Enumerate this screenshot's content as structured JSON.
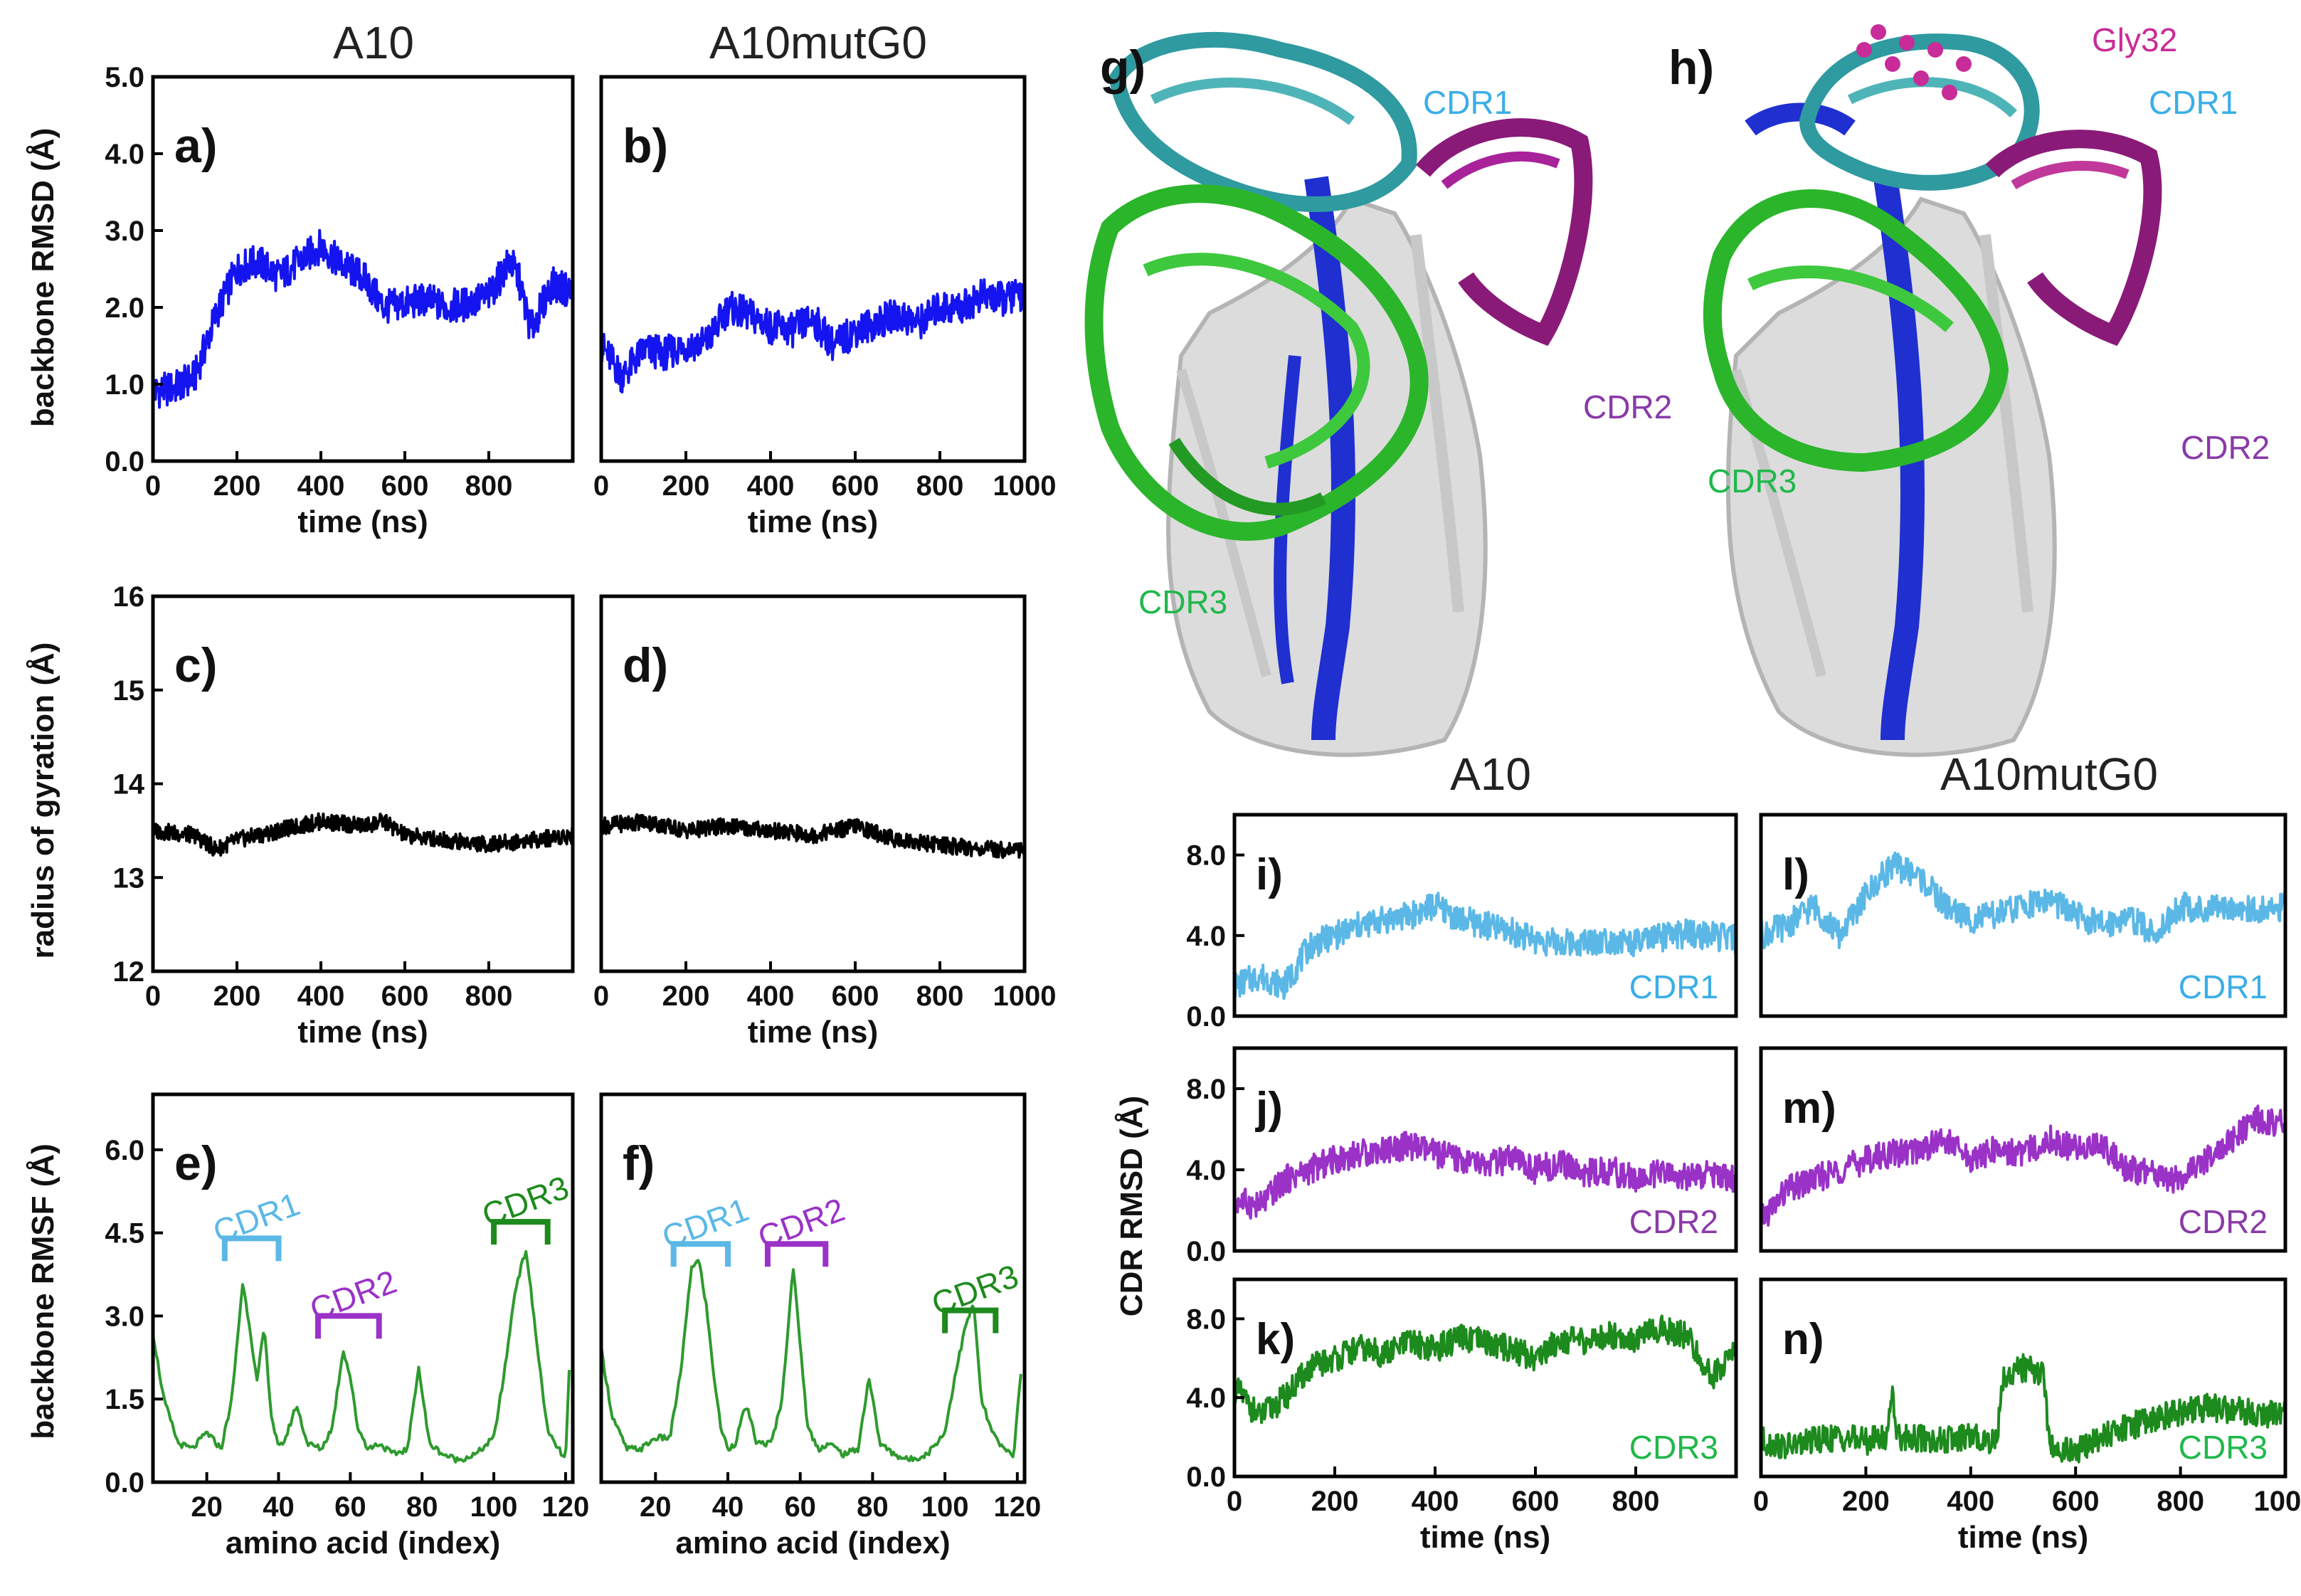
{
  "colors": {
    "rmsd": "#1414f0",
    "rg": "#000000",
    "rmsf": "#2e9a2e",
    "cdr1": "#5bb8e6",
    "cdr2": "#9a32c8",
    "cdr3": "#1d8a1d",
    "cdr1_text": "#3aaee8",
    "cdr2_text": "#8a3aa8",
    "cdr3_text": "#1fb84a",
    "gly32": "#c82c98"
  },
  "column_titles": [
    "A10",
    "A10mutG0",
    "A10",
    "A10mutG0"
  ],
  "structure_labels": {
    "g": {
      "panel": "g)",
      "cdr1": "CDR1",
      "cdr2": "CDR2",
      "cdr3": "CDR3"
    },
    "h": {
      "panel": "h)",
      "cdr1": "CDR1",
      "cdr2": "CDR2",
      "cdr3": "CDR3",
      "residue": "Gly32"
    }
  },
  "axis_labels": {
    "rmsd_y": "backbone RMSD (Å)",
    "rg_y": "radius of gyration (Å)",
    "rmsf_y": "backbone RMSF (Å)",
    "time_x": "time (ns)",
    "aa_x": "amino acid (index)",
    "cdr_y": "CDR RMSD (Å)"
  },
  "chart_data": [
    {
      "id": "a",
      "panel": "a)",
      "type": "line",
      "series_color": "rmsd",
      "xlim": [
        0,
        1000
      ],
      "ylim": [
        0,
        5
      ],
      "xticks": [
        "0",
        "200",
        "400",
        "600",
        "800"
      ],
      "yticks": [
        "0.0",
        "1.0",
        "2.0",
        "3.0",
        "4.0",
        "5.0"
      ],
      "xlabel": "time (ns)",
      "ylabel": "backbone RMSD (Å)",
      "x": [
        0,
        50,
        100,
        150,
        200,
        250,
        300,
        350,
        400,
        450,
        500,
        550,
        600,
        650,
        700,
        750,
        800,
        850,
        870,
        900,
        950,
        1000
      ],
      "y": [
        0.9,
        0.95,
        1.1,
        1.9,
        2.5,
        2.6,
        2.4,
        2.6,
        2.8,
        2.55,
        2.4,
        2.0,
        2.05,
        2.1,
        2.0,
        2.05,
        2.15,
        2.6,
        2.4,
        1.7,
        2.3,
        2.2
      ]
    },
    {
      "id": "b",
      "panel": "b)",
      "type": "line",
      "series_color": "rmsd",
      "xlim": [
        0,
        1000
      ],
      "ylim": [
        0,
        5
      ],
      "xticks": [
        "0",
        "200",
        "400",
        "600",
        "800",
        "1000"
      ],
      "yticks": [],
      "xlabel": "time (ns)",
      "ylabel": "",
      "x": [
        0,
        50,
        100,
        150,
        200,
        250,
        300,
        350,
        400,
        450,
        500,
        550,
        600,
        650,
        700,
        750,
        800,
        850,
        900,
        950,
        1000
      ],
      "y": [
        1.5,
        1.1,
        1.45,
        1.4,
        1.5,
        1.55,
        2.0,
        1.9,
        1.75,
        1.7,
        1.85,
        1.5,
        1.7,
        1.8,
        1.9,
        1.8,
        2.0,
        2.0,
        2.15,
        2.1,
        2.2
      ]
    },
    {
      "id": "c",
      "panel": "c)",
      "type": "line",
      "series_color": "rg",
      "xlim": [
        0,
        1000
      ],
      "ylim": [
        12,
        16
      ],
      "xticks": [
        "0",
        "200",
        "400",
        "600",
        "800"
      ],
      "yticks": [
        "12",
        "13",
        "14",
        "15",
        "16"
      ],
      "xlabel": "time (ns)",
      "ylabel": "radius of gyration (Å)",
      "x": [
        0,
        100,
        150,
        200,
        300,
        400,
        500,
        550,
        600,
        700,
        800,
        900,
        1000
      ],
      "y": [
        13.5,
        13.45,
        13.3,
        13.4,
        13.5,
        13.6,
        13.55,
        13.6,
        13.45,
        13.4,
        13.35,
        13.4,
        13.45
      ]
    },
    {
      "id": "d",
      "panel": "d)",
      "type": "line",
      "series_color": "rg",
      "xlim": [
        0,
        1000
      ],
      "ylim": [
        12,
        16
      ],
      "xticks": [
        "0",
        "200",
        "400",
        "600",
        "800",
        "1000"
      ],
      "yticks": [],
      "xlabel": "time (ns)",
      "ylabel": "",
      "x": [
        0,
        100,
        200,
        300,
        400,
        500,
        600,
        700,
        800,
        900,
        1000
      ],
      "y": [
        13.55,
        13.6,
        13.5,
        13.55,
        13.5,
        13.45,
        13.55,
        13.4,
        13.35,
        13.3,
        13.3
      ]
    },
    {
      "id": "e",
      "panel": "e)",
      "type": "line",
      "series_color": "rmsf",
      "xlim": [
        5,
        122
      ],
      "ylim": [
        0,
        7
      ],
      "xticks": [
        "20",
        "40",
        "60",
        "80",
        "100",
        "120"
      ],
      "yticks": [
        "0.0",
        "1.5",
        "3.0",
        "4.5",
        "6.0"
      ],
      "xlabel": "amino acid (index)",
      "ylabel": "backbone RMSF (Å)",
      "x": [
        5,
        8,
        12,
        16,
        20,
        24,
        27,
        30,
        32,
        34,
        36,
        38,
        40,
        42,
        45,
        48,
        52,
        55,
        58,
        60,
        62,
        65,
        68,
        72,
        76,
        79,
        82,
        86,
        90,
        95,
        100,
        103,
        106,
        109,
        112,
        115,
        118,
        120,
        121
      ],
      "y": [
        2.7,
        1.5,
        0.7,
        0.6,
        0.9,
        0.6,
        1.5,
        3.6,
        2.8,
        1.8,
        2.8,
        1.2,
        0.6,
        0.8,
        1.4,
        0.7,
        0.6,
        1.0,
        2.4,
        1.9,
        1.0,
        0.6,
        0.7,
        0.5,
        0.6,
        2.1,
        0.7,
        0.5,
        0.4,
        0.5,
        0.8,
        2.0,
        3.5,
        4.2,
        2.5,
        0.9,
        0.6,
        0.4,
        2.0
      ],
      "brackets": [
        {
          "label": "CDR1",
          "from": 25,
          "to": 40,
          "height": 4.4,
          "color": "cdr1"
        },
        {
          "label": "CDR2",
          "from": 51,
          "to": 68,
          "height": 3.0,
          "color": "cdr2"
        },
        {
          "label": "CDR3",
          "from": 100,
          "to": 115,
          "height": 4.7,
          "color": "cdr3"
        }
      ]
    },
    {
      "id": "f",
      "panel": "f)",
      "type": "line",
      "series_color": "rmsf",
      "xlim": [
        5,
        122
      ],
      "ylim": [
        0,
        7
      ],
      "xticks": [
        "20",
        "40",
        "60",
        "80",
        "100",
        "120"
      ],
      "yticks": [],
      "xlabel": "amino acid (index)",
      "ylabel": "",
      "x": [
        5,
        8,
        12,
        16,
        20,
        24,
        27,
        30,
        32,
        34,
        36,
        38,
        40,
        42,
        45,
        48,
        52,
        55,
        58,
        60,
        62,
        65,
        68,
        72,
        76,
        79,
        82,
        86,
        90,
        95,
        100,
        103,
        106,
        108,
        110,
        113,
        116,
        119,
        121
      ],
      "y": [
        2.4,
        1.2,
        0.6,
        0.6,
        0.8,
        0.8,
        2.0,
        3.9,
        4.0,
        3.2,
        2.0,
        1.0,
        0.6,
        0.7,
        1.4,
        0.7,
        0.7,
        1.5,
        3.9,
        2.5,
        1.0,
        0.6,
        0.7,
        0.5,
        0.6,
        1.9,
        0.7,
        0.5,
        0.4,
        0.5,
        0.9,
        2.0,
        2.9,
        3.2,
        1.5,
        0.9,
        0.6,
        0.5,
        2.0
      ],
      "brackets": [
        {
          "label": "CDR1",
          "from": 25,
          "to": 40,
          "height": 4.3,
          "color": "cdr1"
        },
        {
          "label": "CDR2",
          "from": 51,
          "to": 67,
          "height": 4.3,
          "color": "cdr2"
        },
        {
          "label": "CDR3",
          "from": 100,
          "to": 114,
          "height": 3.1,
          "color": "cdr3"
        }
      ]
    },
    {
      "id": "i",
      "panel": "i)",
      "type": "line",
      "series_color": "cdr1",
      "xlim": [
        0,
        1000
      ],
      "ylim": [
        0,
        10
      ],
      "xticks": [],
      "yticks": [
        "0.0",
        "4.0",
        "8.0"
      ],
      "xlabel": "",
      "ylabel": "",
      "tag": "CDR1",
      "tag_color": "cdr1_text",
      "x": [
        0,
        50,
        100,
        150,
        200,
        250,
        300,
        350,
        400,
        450,
        500,
        550,
        600,
        650,
        700,
        750,
        800,
        850,
        900,
        950,
        1000
      ],
      "y": [
        1.5,
        2.0,
        1.5,
        3.5,
        4.0,
        4.5,
        4.8,
        5.0,
        5.5,
        4.8,
        4.5,
        4.2,
        3.8,
        3.6,
        3.7,
        3.8,
        3.6,
        3.9,
        4.1,
        4.0,
        3.8
      ]
    },
    {
      "id": "l",
      "panel": "l)",
      "type": "line",
      "series_color": "cdr1",
      "xlim": [
        0,
        1000
      ],
      "ylim": [
        0,
        10
      ],
      "xticks": [],
      "yticks": [],
      "xlabel": "",
      "ylabel": "",
      "tag": "CDR1",
      "tag_color": "cdr1_text",
      "x": [
        0,
        50,
        100,
        150,
        200,
        250,
        300,
        350,
        400,
        450,
        500,
        550,
        600,
        650,
        700,
        750,
        800,
        850,
        900,
        950,
        1000
      ],
      "y": [
        4.0,
        4.5,
        5.5,
        4.0,
        6.0,
        7.5,
        7.0,
        5.5,
        4.8,
        5.0,
        5.5,
        5.8,
        5.0,
        4.5,
        5.0,
        4.0,
        5.5,
        5.2,
        5.5,
        5.2,
        5.4
      ]
    },
    {
      "id": "j",
      "panel": "j)",
      "type": "line",
      "series_color": "cdr2",
      "xlim": [
        0,
        1000
      ],
      "ylim": [
        0,
        10
      ],
      "xticks": [],
      "yticks": [
        "0.0",
        "4.0",
        "8.0"
      ],
      "xlabel": "",
      "ylabel": "",
      "tag": "CDR2",
      "tag_color": "cdr2_text",
      "x": [
        0,
        50,
        100,
        150,
        200,
        250,
        300,
        350,
        400,
        450,
        500,
        550,
        600,
        650,
        700,
        750,
        800,
        850,
        900,
        950,
        1000
      ],
      "y": [
        2.5,
        2.2,
        3.5,
        4.0,
        4.5,
        4.8,
        5.0,
        5.2,
        4.8,
        4.5,
        4.2,
        4.5,
        4.0,
        4.3,
        3.8,
        4.0,
        3.5,
        3.8,
        3.6,
        3.8,
        3.5
      ]
    },
    {
      "id": "m",
      "panel": "m)",
      "type": "line",
      "series_color": "cdr2",
      "xlim": [
        0,
        1000
      ],
      "ylim": [
        0,
        10
      ],
      "xticks": [],
      "yticks": [],
      "xlabel": "",
      "ylabel": "",
      "tag": "CDR2",
      "tag_color": "cdr2_text",
      "x": [
        0,
        50,
        100,
        150,
        200,
        250,
        300,
        350,
        400,
        450,
        500,
        550,
        600,
        650,
        700,
        750,
        800,
        850,
        900,
        950,
        1000
      ],
      "y": [
        1.5,
        3.0,
        3.5,
        4.0,
        4.5,
        4.8,
        5.0,
        5.5,
        4.5,
        5.0,
        4.8,
        5.5,
        5.0,
        5.3,
        4.0,
        3.8,
        3.5,
        4.5,
        5.5,
        6.5,
        6.2
      ]
    },
    {
      "id": "k",
      "panel": "k)",
      "type": "line",
      "series_color": "cdr3",
      "xlim": [
        0,
        1000
      ],
      "ylim": [
        0,
        10
      ],
      "xticks": [
        "0",
        "200",
        "400",
        "600",
        "800"
      ],
      "yticks": [
        "0.0",
        "4.0",
        "8.0"
      ],
      "xlabel": "time (ns)",
      "ylabel": "",
      "tag": "CDR3",
      "tag_color": "cdr3_text",
      "x": [
        0,
        50,
        100,
        150,
        200,
        250,
        300,
        350,
        400,
        450,
        500,
        550,
        600,
        650,
        700,
        750,
        800,
        850,
        900,
        950,
        1000
      ],
      "y": [
        4.5,
        3.0,
        4.0,
        5.5,
        6.0,
        6.5,
        6.2,
        6.8,
        6.5,
        7.0,
        6.8,
        6.5,
        6.0,
        7.0,
        6.8,
        7.2,
        7.0,
        7.5,
        7.2,
        5.0,
        6.5
      ]
    },
    {
      "id": "n",
      "panel": "n)",
      "type": "line",
      "series_color": "cdr3",
      "xlim": [
        0,
        1000
      ],
      "ylim": [
        0,
        10
      ],
      "xticks": [
        "0",
        "200",
        "400",
        "600",
        "800",
        "1000"
      ],
      "yticks": [],
      "xlabel": "time (ns)",
      "ylabel": "",
      "tag": "CDR3",
      "tag_color": "cdr3_text",
      "x": [
        0,
        50,
        100,
        150,
        200,
        240,
        250,
        260,
        280,
        350,
        400,
        450,
        460,
        500,
        540,
        550,
        600,
        650,
        700,
        750,
        800,
        850,
        900,
        950,
        1000
      ],
      "y": [
        1.8,
        1.5,
        1.8,
        2.0,
        1.8,
        2.0,
        4.5,
        2.0,
        2.0,
        1.8,
        2.0,
        1.8,
        5.0,
        5.5,
        5.2,
        1.5,
        1.2,
        2.0,
        2.5,
        3.0,
        3.3,
        3.5,
        3.4,
        3.2,
        3.1
      ]
    }
  ]
}
